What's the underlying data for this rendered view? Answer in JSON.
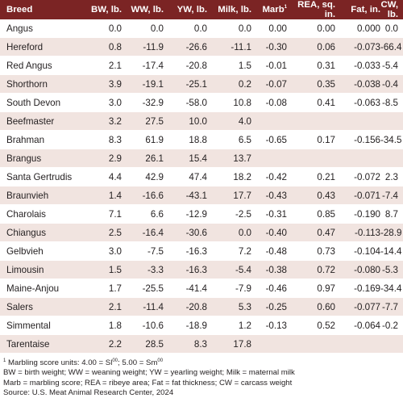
{
  "columns": [
    "Breed",
    "BW, lb.",
    "WW, lb.",
    "YW, lb.",
    "Milk, lb.",
    "Marb",
    "REA, sq. in.",
    "Fat, in.",
    "CW, lb."
  ],
  "marb_footnote_mark": "1",
  "rows": [
    [
      "Angus",
      "0.0",
      "0.0",
      "0.0",
      "0.0",
      "0.00",
      "0.00",
      "0.000",
      "0.0"
    ],
    [
      "Hereford",
      "0.8",
      "-11.9",
      "-26.6",
      "-11.1",
      "-0.30",
      "0.06",
      "-0.073",
      "-66.4"
    ],
    [
      "Red Angus",
      "2.1",
      "-17.4",
      "-20.8",
      "1.5",
      "-0.01",
      "0.31",
      "-0.033",
      "-5.4"
    ],
    [
      "Shorthorn",
      "3.9",
      "-19.1",
      "-25.1",
      "0.2",
      "-0.07",
      "0.35",
      "-0.038",
      "-0.4"
    ],
    [
      "South Devon",
      "3.0",
      "-32.9",
      "-58.0",
      "10.8",
      "-0.08",
      "0.41",
      "-0.063",
      "-8.5"
    ],
    [
      "Beefmaster",
      "3.2",
      "27.5",
      "10.0",
      "4.0",
      "",
      "",
      "",
      ""
    ],
    [
      "Brahman",
      "8.3",
      "61.9",
      "18.8",
      "6.5",
      "-0.65",
      "0.17",
      "-0.156",
      "-34.5"
    ],
    [
      "Brangus",
      "2.9",
      "26.1",
      "15.4",
      "13.7",
      "",
      "",
      "",
      ""
    ],
    [
      "Santa Gertrudis",
      "4.4",
      "42.9",
      "47.4",
      "18.2",
      "-0.42",
      "0.21",
      "-0.072",
      "2.3"
    ],
    [
      "Braunvieh",
      "1.4",
      "-16.6",
      "-43.1",
      "17.7",
      "-0.43",
      "0.43",
      "-0.071",
      "-7.4"
    ],
    [
      "Charolais",
      "7.1",
      "6.6",
      "-12.9",
      "-2.5",
      "-0.31",
      "0.85",
      "-0.190",
      "8.7"
    ],
    [
      "Chiangus",
      "2.5",
      "-16.4",
      "-30.6",
      "0.0",
      "-0.40",
      "0.47",
      "-0.113",
      "-28.9"
    ],
    [
      "Gelbvieh",
      "3.0",
      "-7.5",
      "-16.3",
      "7.2",
      "-0.48",
      "0.73",
      "-0.104",
      "-14.4"
    ],
    [
      "Limousin",
      "1.5",
      "-3.3",
      "-16.3",
      "-5.4",
      "-0.38",
      "0.72",
      "-0.080",
      "-5.3"
    ],
    [
      "Maine-Anjou",
      "1.7",
      "-25.5",
      "-41.4",
      "-7.9",
      "-0.46",
      "0.97",
      "-0.169",
      "-34.4"
    ],
    [
      "Salers",
      "2.1",
      "-11.4",
      "-20.8",
      "5.3",
      "-0.25",
      "0.60",
      "-0.077",
      "-7.7"
    ],
    [
      "Simmental",
      "1.8",
      "-10.6",
      "-18.9",
      "1.2",
      "-0.13",
      "0.52",
      "-0.064",
      "-0.2"
    ],
    [
      "Tarentaise",
      "2.2",
      "28.5",
      "8.3",
      "17.8",
      "",
      "",
      "",
      ""
    ]
  ],
  "notes": {
    "marbling_mark": "1",
    "marbling": "Marbling score units: 4.00 = Sl",
    "marbling_sup1": "00",
    "marbling_mid": "; 5.00 = Sm",
    "marbling_sup2": "00",
    "abbrev1": "BW = birth weight; WW = weaning weight; YW = yearling weight; Milk = maternal milk",
    "abbrev2": "Marb = marbling score; REA = ribeye area; Fat = fat thickness; CW = carcass weight",
    "source": "Source: U.S. Meat Animal Research Center, 2024"
  }
}
